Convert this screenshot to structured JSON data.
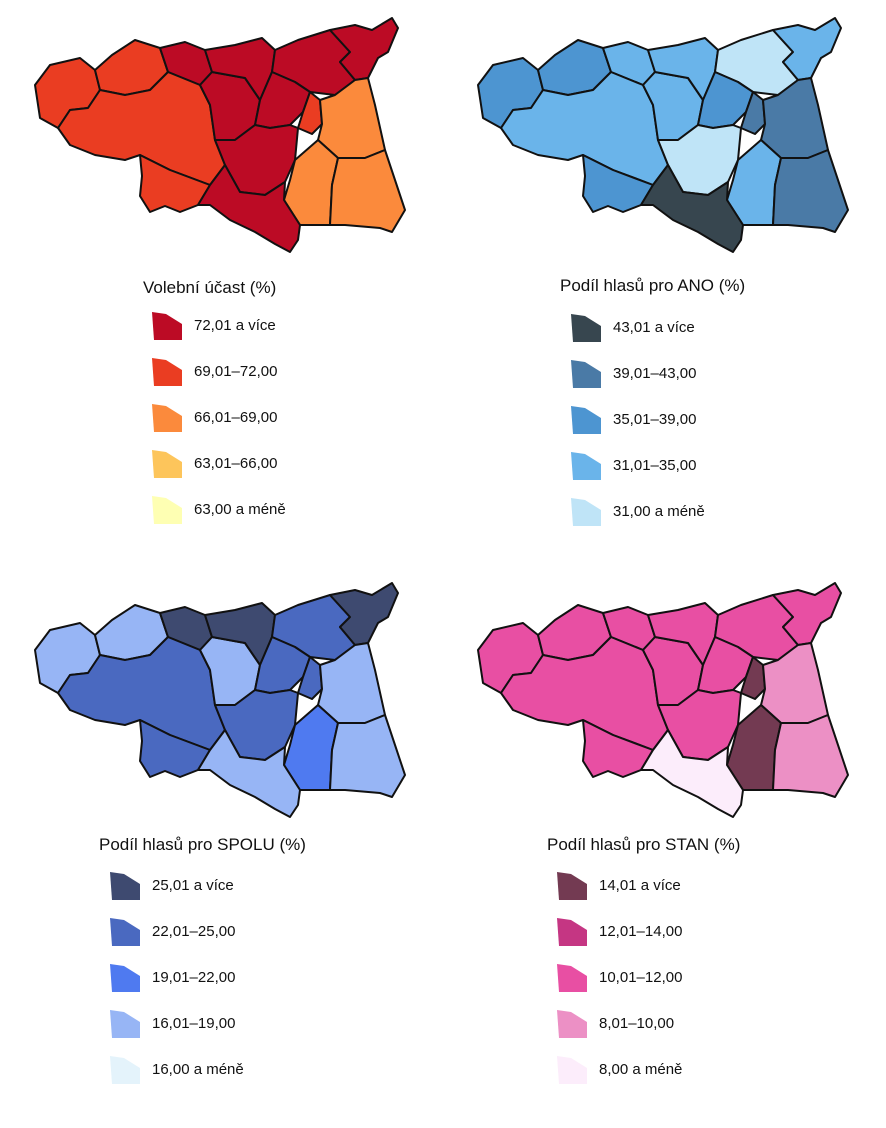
{
  "regions": [
    "r1",
    "r2",
    "r3",
    "r4",
    "r5",
    "r6",
    "r7",
    "r8",
    "r9",
    "r10",
    "r11",
    "r12",
    "r13",
    "r14",
    "r15"
  ],
  "maps": [
    {
      "id": "turnout",
      "title": "Volební účast (%)",
      "legend": [
        {
          "label": "72,01 a více",
          "color": "#bc0b25"
        },
        {
          "label": "69,01–72,00",
          "color": "#ea3d22"
        },
        {
          "label": "66,01–69,00",
          "color": "#fb8a3c"
        },
        {
          "label": "63,01–66,00",
          "color": "#fdc55b"
        },
        {
          "label": "63,00 a méně",
          "color": "#feffb3"
        }
      ],
      "region_class": [
        1,
        0,
        1,
        1,
        0,
        0,
        0,
        0,
        0,
        1,
        2,
        0,
        2,
        2,
        0
      ]
    },
    {
      "id": "ano",
      "title": "Podíl hlasů pro ANO (%)",
      "legend": [
        {
          "label": "43,01 a více",
          "color": "#37464f"
        },
        {
          "label": "39,01–43,00",
          "color": "#4a7aa6"
        },
        {
          "label": "35,01–39,00",
          "color": "#4d95d1"
        },
        {
          "label": "31,01–35,00",
          "color": "#6ab4ea"
        },
        {
          "label": "31,00 a méně",
          "color": "#bfe4f7"
        }
      ],
      "region_class": [
        2,
        3,
        3,
        2,
        3,
        3,
        4,
        3,
        2,
        1,
        1,
        4,
        3,
        1,
        0
      ]
    },
    {
      "id": "spolu",
      "title": "Podíl hlasů pro SPOLU (%)",
      "legend": [
        {
          "label": "25,01 a více",
          "color": "#3e4a70"
        },
        {
          "label": "22,01–25,00",
          "color": "#4a69c0"
        },
        {
          "label": "19,01–22,00",
          "color": "#4f7af0"
        },
        {
          "label": "16,01–19,00",
          "color": "#97b5f5"
        },
        {
          "label": "16,00 a méně",
          "color": "#e4f3fb"
        }
      ],
      "region_class": [
        3,
        0,
        1,
        1,
        3,
        0,
        1,
        0,
        1,
        1,
        3,
        1,
        2,
        3,
        3
      ]
    },
    {
      "id": "stan",
      "title": "Podíl hlasů pro STAN (%)",
      "legend": [
        {
          "label": "14,01 a více",
          "color": "#733a52"
        },
        {
          "label": "12,01–14,00",
          "color": "#c53683"
        },
        {
          "label": "10,01–12,00",
          "color": "#e84fa3"
        },
        {
          "label": "8,01–10,00",
          "color": "#ec90c5"
        },
        {
          "label": "8,00 a méně",
          "color": "#fcedfb"
        }
      ],
      "region_class": [
        2,
        2,
        2,
        2,
        2,
        2,
        2,
        2,
        2,
        0,
        3,
        2,
        0,
        3,
        4
      ]
    }
  ]
}
